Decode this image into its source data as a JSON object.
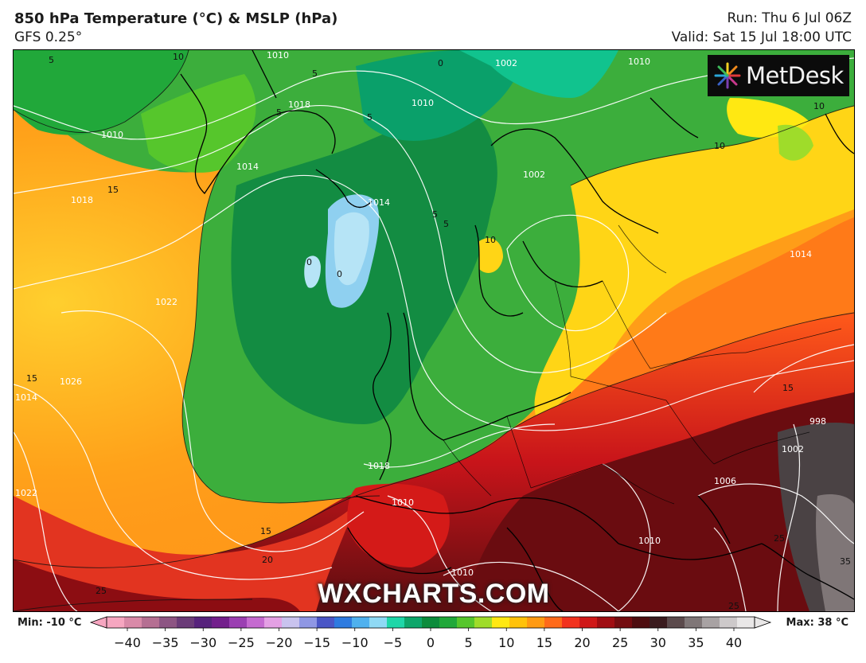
{
  "header": {
    "title": "850 hPa Temperature (°C) & MSLP (hPa)",
    "model": "GFS 0.25°",
    "run": "Run: Thu 6 Jul 06Z",
    "valid": "Valid: Sat 15 Jul 18:00 UTC"
  },
  "branding": {
    "logo_text": "MetDesk",
    "watermark": "WXCHARTS.COM"
  },
  "legend": {
    "min_label": "Min: -10 °C",
    "max_label": "Max: 38 °C",
    "ticks": [
      "−40",
      "−35",
      "−30",
      "−25",
      "−20",
      "−15",
      "−10",
      "−5",
      "0",
      "5",
      "10",
      "15",
      "20",
      "25",
      "30",
      "35",
      "40"
    ],
    "colors": [
      "#f6a6c0",
      "#d98aa8",
      "#b56f92",
      "#8d5583",
      "#6b3c78",
      "#57237c",
      "#731f8c",
      "#9b3fb2",
      "#c56ad0",
      "#e4a0e4",
      "#c9c3ee",
      "#8f97e4",
      "#4a56c6",
      "#2e7be0",
      "#4fb1ee",
      "#8fd9f4",
      "#1fd6a8",
      "#0ea66a",
      "#0c8c3c",
      "#21a83a",
      "#56c62c",
      "#9fdc2a",
      "#ffe812",
      "#ffc20a",
      "#ff9a12",
      "#ff6a1a",
      "#f2321e",
      "#d01818",
      "#a00d12",
      "#740c10",
      "#4e0d10",
      "#3a1b1e",
      "#5b4a4c",
      "#7f7677",
      "#a8a2a3",
      "#cdc9ca",
      "#e9e7e7"
    ]
  },
  "map": {
    "isobar_labels": [
      "1010",
      "1018",
      "1010",
      "1018",
      "1014",
      "1022",
      "1026",
      "1014",
      "1022",
      "1018",
      "1010",
      "1010",
      "1002",
      "1010",
      "1014",
      "1006",
      "1002",
      "998",
      "1002",
      "1014",
      "1010",
      "1010"
    ],
    "temp_labels": [
      "5",
      "5",
      "10",
      "5",
      "5",
      "15",
      "0",
      "0",
      "0",
      "5",
      "5",
      "10",
      "10",
      "10",
      "15",
      "15",
      "15",
      "20",
      "25",
      "25",
      "35",
      "25"
    ]
  }
}
